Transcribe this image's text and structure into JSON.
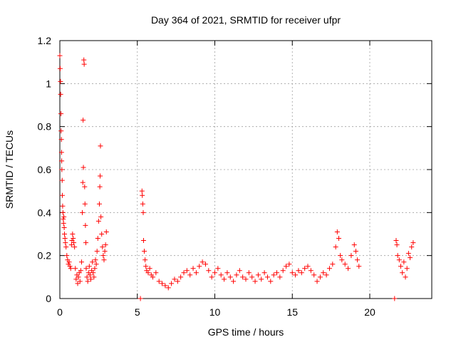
{
  "chart_data": {
    "type": "scatter",
    "title": "Day 364 of 2021, SRMTID for receiver ufpr",
    "xlabel": "GPS time / hours",
    "ylabel": "SRMTID / TECUs",
    "xlim": [
      0,
      24
    ],
    "ylim": [
      0,
      1.2
    ],
    "xticks": [
      0,
      5,
      10,
      15,
      20
    ],
    "yticks": [
      0,
      0.2,
      0.4,
      0.6,
      0.8,
      1,
      1.2
    ],
    "xtick_labels": [
      "0",
      "5",
      "10",
      "15",
      "20"
    ],
    "ytick_labels": [
      "0",
      "0.2",
      "0.4",
      "0.6",
      "0.8",
      "1",
      "1.2"
    ],
    "grid": true,
    "marker": "plus",
    "series": [
      {
        "name": "SRMTID",
        "color": "#ff0000",
        "points": [
          [
            0.0,
            1.13
          ],
          [
            0.02,
            1.07
          ],
          [
            0.04,
            1.01
          ],
          [
            0.05,
            0.95
          ],
          [
            0.07,
            0.86
          ],
          [
            0.08,
            0.78
          ],
          [
            0.1,
            0.74
          ],
          [
            0.11,
            0.68
          ],
          [
            0.12,
            0.64
          ],
          [
            0.13,
            0.6
          ],
          [
            0.15,
            0.55
          ],
          [
            0.16,
            0.48
          ],
          [
            0.18,
            0.43
          ],
          [
            0.2,
            0.4
          ],
          [
            0.22,
            0.37
          ],
          [
            0.24,
            0.35
          ],
          [
            0.26,
            0.38
          ],
          [
            0.28,
            0.33
          ],
          [
            0.3,
            0.3
          ],
          [
            0.33,
            0.28
          ],
          [
            0.36,
            0.26
          ],
          [
            0.4,
            0.24
          ],
          [
            0.45,
            0.2
          ],
          [
            0.5,
            0.18
          ],
          [
            0.55,
            0.16
          ],
          [
            0.6,
            0.17
          ],
          [
            0.65,
            0.15
          ],
          [
            0.7,
            0.14
          ],
          [
            0.75,
            0.25
          ],
          [
            0.78,
            0.27
          ],
          [
            0.82,
            0.3
          ],
          [
            0.86,
            0.28
          ],
          [
            0.9,
            0.26
          ],
          [
            0.95,
            0.24
          ],
          [
            1.0,
            0.14
          ],
          [
            1.05,
            0.09
          ],
          [
            1.1,
            0.11
          ],
          [
            1.15,
            0.07
          ],
          [
            1.2,
            0.1
          ],
          [
            1.25,
            0.12
          ],
          [
            1.3,
            0.08
          ],
          [
            1.35,
            0.13
          ],
          [
            1.4,
            0.17
          ],
          [
            1.45,
            0.4
          ],
          [
            1.48,
            0.54
          ],
          [
            1.5,
            0.83
          ],
          [
            1.52,
            0.61
          ],
          [
            1.55,
            1.11
          ],
          [
            1.57,
            1.09
          ],
          [
            1.6,
            0.52
          ],
          [
            1.62,
            0.44
          ],
          [
            1.65,
            0.34
          ],
          [
            1.68,
            0.26
          ],
          [
            1.7,
            0.14
          ],
          [
            1.75,
            0.1
          ],
          [
            1.8,
            0.08
          ],
          [
            1.85,
            0.12
          ],
          [
            1.9,
            0.15
          ],
          [
            1.95,
            0.11
          ],
          [
            2.0,
            0.09
          ],
          [
            2.05,
            0.13
          ],
          [
            2.1,
            0.17
          ],
          [
            2.15,
            0.12
          ],
          [
            2.2,
            0.1
          ],
          [
            2.25,
            0.14
          ],
          [
            2.3,
            0.18
          ],
          [
            2.35,
            0.16
          ],
          [
            2.4,
            0.22
          ],
          [
            2.45,
            0.28
          ],
          [
            2.5,
            0.36
          ],
          [
            2.55,
            0.44
          ],
          [
            2.58,
            0.52
          ],
          [
            2.6,
            0.57
          ],
          [
            2.62,
            0.71
          ],
          [
            2.65,
            0.38
          ],
          [
            2.7,
            0.3
          ],
          [
            2.75,
            0.24
          ],
          [
            2.8,
            0.2
          ],
          [
            2.85,
            0.18
          ],
          [
            2.9,
            0.22
          ],
          [
            2.95,
            0.25
          ],
          [
            3.0,
            0.31
          ],
          [
            5.2,
            0.0
          ],
          [
            5.3,
            0.5
          ],
          [
            5.32,
            0.48
          ],
          [
            5.35,
            0.44
          ],
          [
            5.38,
            0.4
          ],
          [
            5.4,
            0.27
          ],
          [
            5.45,
            0.22
          ],
          [
            5.5,
            0.18
          ],
          [
            5.55,
            0.15
          ],
          [
            5.6,
            0.13
          ],
          [
            5.7,
            0.12
          ],
          [
            5.8,
            0.14
          ],
          [
            5.9,
            0.11
          ],
          [
            6.0,
            0.1
          ],
          [
            6.2,
            0.12
          ],
          [
            6.4,
            0.08
          ],
          [
            6.6,
            0.07
          ],
          [
            6.8,
            0.06
          ],
          [
            7.0,
            0.05
          ],
          [
            7.2,
            0.07
          ],
          [
            7.4,
            0.09
          ],
          [
            7.6,
            0.08
          ],
          [
            7.8,
            0.1
          ],
          [
            8.0,
            0.12
          ],
          [
            8.2,
            0.13
          ],
          [
            8.4,
            0.11
          ],
          [
            8.6,
            0.14
          ],
          [
            8.8,
            0.12
          ],
          [
            9.0,
            0.15
          ],
          [
            9.2,
            0.17
          ],
          [
            9.4,
            0.16
          ],
          [
            9.6,
            0.13
          ],
          [
            9.8,
            0.1
          ],
          [
            10.0,
            0.12
          ],
          [
            10.2,
            0.14
          ],
          [
            10.4,
            0.11
          ],
          [
            10.6,
            0.09
          ],
          [
            10.8,
            0.12
          ],
          [
            11.0,
            0.1
          ],
          [
            11.2,
            0.08
          ],
          [
            11.4,
            0.11
          ],
          [
            11.6,
            0.13
          ],
          [
            11.8,
            0.1
          ],
          [
            12.0,
            0.09
          ],
          [
            12.2,
            0.12
          ],
          [
            12.4,
            0.1
          ],
          [
            12.6,
            0.08
          ],
          [
            12.8,
            0.11
          ],
          [
            13.0,
            0.09
          ],
          [
            13.2,
            0.12
          ],
          [
            13.4,
            0.1
          ],
          [
            13.6,
            0.08
          ],
          [
            13.8,
            0.11
          ],
          [
            14.0,
            0.12
          ],
          [
            14.2,
            0.1
          ],
          [
            14.4,
            0.13
          ],
          [
            14.6,
            0.15
          ],
          [
            14.8,
            0.16
          ],
          [
            15.0,
            0.12
          ],
          [
            15.2,
            0.11
          ],
          [
            15.4,
            0.13
          ],
          [
            15.6,
            0.12
          ],
          [
            15.8,
            0.14
          ],
          [
            16.0,
            0.15
          ],
          [
            16.2,
            0.13
          ],
          [
            16.4,
            0.11
          ],
          [
            16.6,
            0.08
          ],
          [
            16.8,
            0.1
          ],
          [
            17.0,
            0.12
          ],
          [
            17.2,
            0.11
          ],
          [
            17.4,
            0.14
          ],
          [
            17.6,
            0.16
          ],
          [
            17.8,
            0.24
          ],
          [
            17.9,
            0.31
          ],
          [
            18.0,
            0.28
          ],
          [
            18.1,
            0.2
          ],
          [
            18.2,
            0.18
          ],
          [
            18.4,
            0.16
          ],
          [
            18.6,
            0.14
          ],
          [
            18.8,
            0.2
          ],
          [
            19.0,
            0.25
          ],
          [
            19.1,
            0.22
          ],
          [
            19.2,
            0.18
          ],
          [
            19.3,
            0.15
          ],
          [
            21.6,
            0.0
          ],
          [
            21.7,
            0.27
          ],
          [
            21.75,
            0.25
          ],
          [
            21.8,
            0.2
          ],
          [
            21.9,
            0.18
          ],
          [
            22.0,
            0.15
          ],
          [
            22.1,
            0.12
          ],
          [
            22.2,
            0.17
          ],
          [
            22.3,
            0.1
          ],
          [
            22.4,
            0.14
          ],
          [
            22.5,
            0.21
          ],
          [
            22.6,
            0.19
          ],
          [
            22.7,
            0.24
          ],
          [
            22.8,
            0.26
          ]
        ]
      }
    ]
  }
}
